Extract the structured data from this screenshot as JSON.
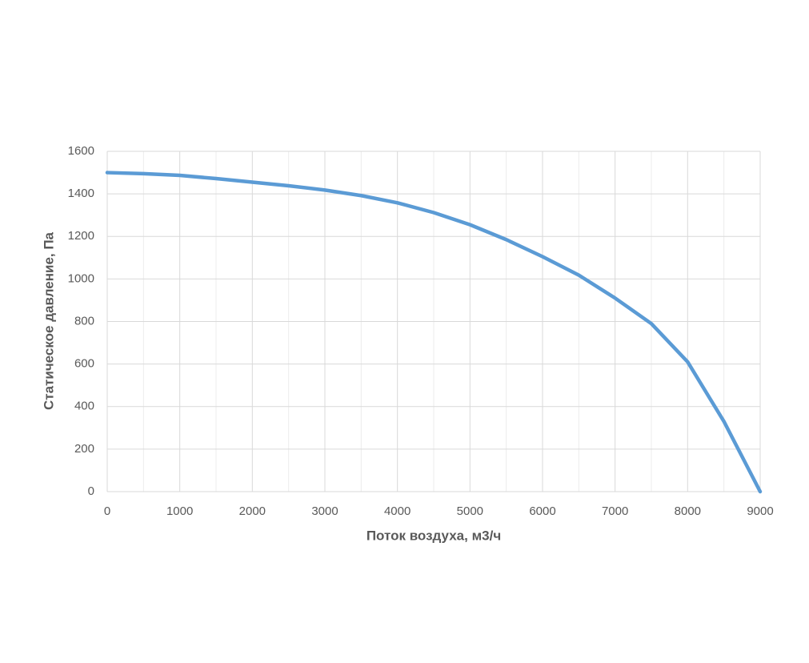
{
  "chart_data": {
    "type": "line",
    "x_label": "Поток воздуха, м3/ч",
    "y_label": "Статическое давление, Па",
    "xlim": [
      0,
      9000
    ],
    "xticks": [
      0,
      1000,
      2000,
      3000,
      4000,
      5000,
      6000,
      7000,
      8000,
      9000
    ],
    "x_minor_ticks": [
      500,
      1500,
      2500,
      3500,
      4500,
      5500,
      6500,
      7500,
      8500
    ],
    "ylim": [
      0,
      1600
    ],
    "yticks": [
      0,
      200,
      400,
      600,
      800,
      1000,
      1200,
      1400,
      1600
    ],
    "grid": true,
    "series": [
      {
        "color": "#5b9bd5",
        "x": [
          0,
          500,
          1000,
          1500,
          2000,
          2500,
          3000,
          3500,
          4000,
          4500,
          5000,
          5500,
          6000,
          6500,
          7000,
          7500,
          8000,
          8500,
          9000
        ],
        "values": [
          1500,
          1495,
          1487,
          1472,
          1455,
          1438,
          1418,
          1392,
          1358,
          1312,
          1255,
          1185,
          1105,
          1018,
          910,
          790,
          610,
          330,
          0
        ]
      }
    ]
  }
}
